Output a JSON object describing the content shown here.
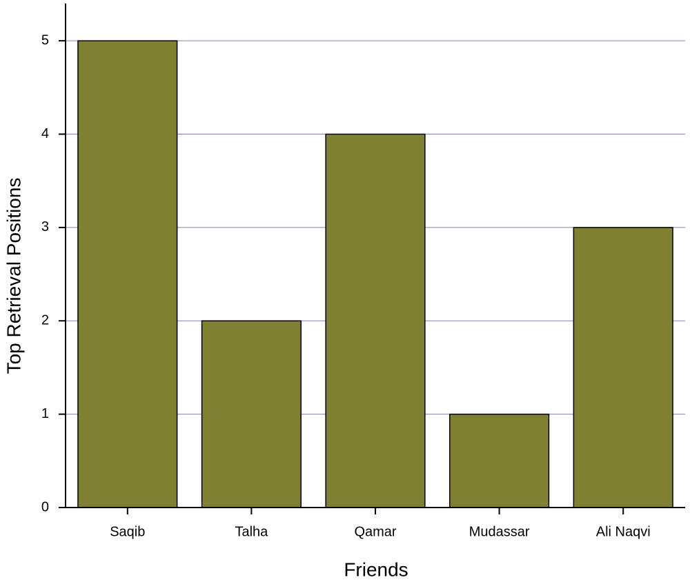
{
  "chart_data": {
    "type": "bar",
    "x_label": "Friends",
    "y_label": "Top Retrieval Positions",
    "categories": [
      "Saqib",
      "Talha",
      "Qamar",
      "Mudassar",
      "Ali Naqvi"
    ],
    "values": [
      5,
      2,
      4,
      1,
      3
    ],
    "color": "#808033",
    "ylim": [
      0,
      5.4
    ],
    "yticks": [
      0,
      1,
      2,
      3,
      4,
      5
    ],
    "grid": true
  }
}
